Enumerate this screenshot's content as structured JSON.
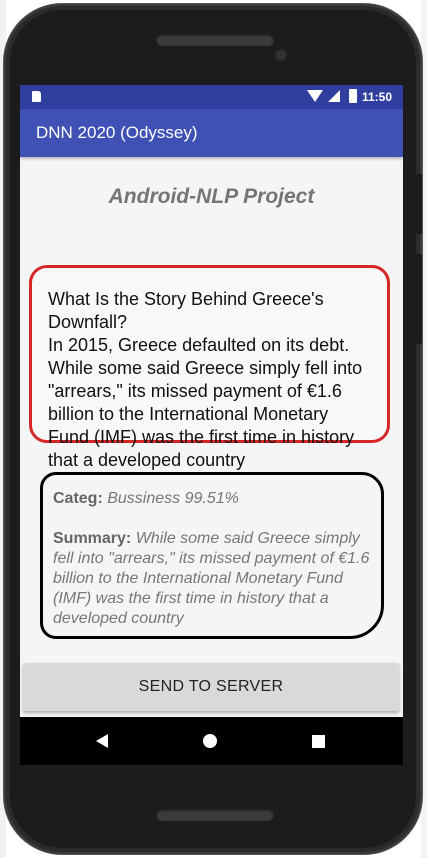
{
  "status_bar": {
    "time": "11:50",
    "icons": [
      "sd-card-icon",
      "wifi-icon",
      "signal-icon",
      "battery-icon"
    ]
  },
  "app_bar": {
    "title": "DNN 2020 (Odyssey)"
  },
  "main": {
    "project_title": "Android-NLP Project",
    "input_text": "What Is the Story Behind Greece's Downfall?\nIn 2015, Greece defaulted on its debt. While some said Greece simply fell into \"arrears,\" its missed payment of €1.6 billion to the International Monetary Fund (IMF) was the first time in history that a developed country",
    "result": {
      "categ_label": "Categ:",
      "categ_value": "Bussiness 99.51%",
      "summary_label": "Summary:",
      "summary_value": "While some said Greece simply fell into \"arrears,\" its missed payment of €1.6 billion to the International Monetary Fund (IMF) was the first time in history that a developed country"
    },
    "send_button_label": "SEND TO SERVER"
  },
  "nav_bar": {
    "icons": [
      "back-icon",
      "home-icon",
      "recent-apps-icon"
    ]
  },
  "colors": {
    "primary": "#3f51b5",
    "primary_dark": "#303f9f",
    "input_border": "#d62728",
    "result_border": "#000000"
  }
}
